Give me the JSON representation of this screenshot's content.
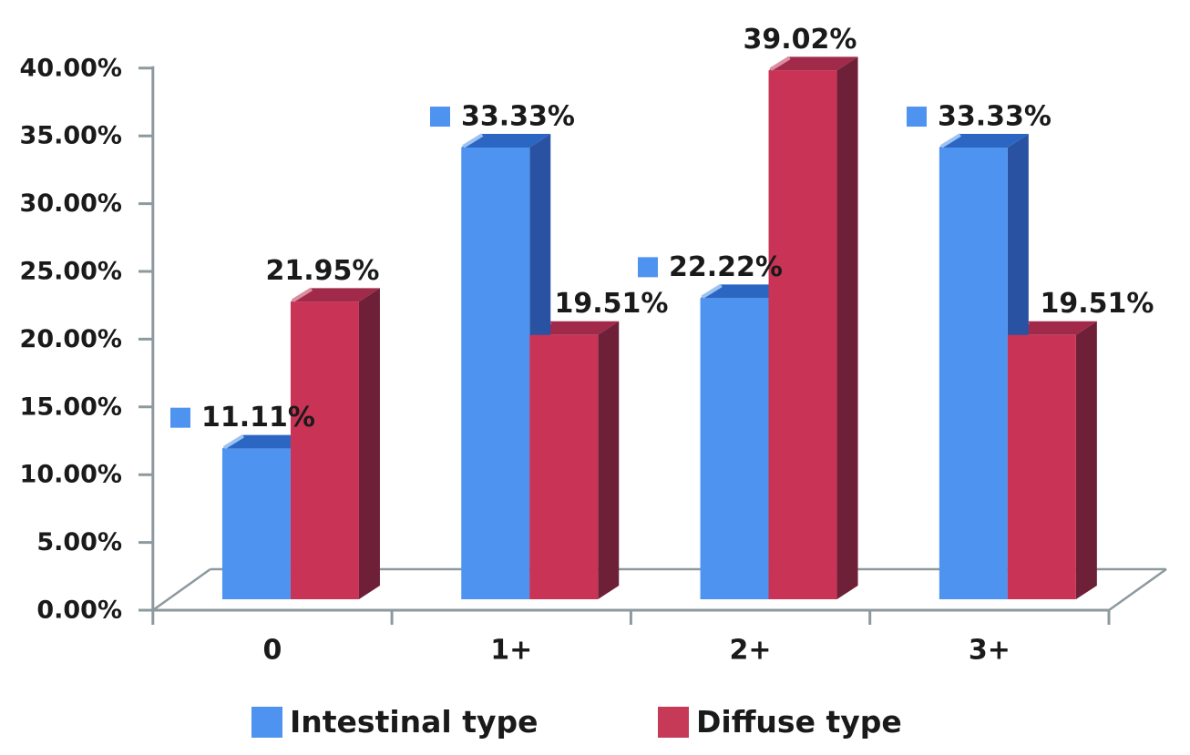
{
  "chart_data": {
    "type": "bar",
    "variant": "3d-clustered-column",
    "title": "",
    "categories": [
      "0",
      "1+",
      "2+",
      "3+"
    ],
    "series": [
      {
        "name": "Intestinal type",
        "values": [
          11.11,
          33.33,
          22.22,
          33.33
        ],
        "data_labels": [
          "11.11%",
          "33.33%",
          "22.22%",
          "33.33%"
        ],
        "show_legend_key_in_labels": true,
        "color_front": "#4e93f0",
        "color_top": "#2b66c2",
        "color_side": "#2a52a3",
        "color_highlight": "#9cc2f1"
      },
      {
        "name": "Diffuse type",
        "values": [
          21.95,
          19.51,
          39.02,
          19.51
        ],
        "data_labels": [
          "21.95%",
          "19.51%",
          "39.02%",
          "19.51%"
        ],
        "show_legend_key_in_labels": false,
        "color_front": "#c93355",
        "color_top": "#a12a4b",
        "color_side": "#6e2038",
        "color_highlight": "#dd8da0"
      }
    ],
    "y_axis": {
      "min": 0,
      "max": 40,
      "step": 5,
      "tick_labels": [
        "40.00%",
        "35.00%",
        "30.00%",
        "25.00%",
        "20.00%",
        "15.00%",
        "10.00%",
        "5.00%",
        "0.00%"
      ]
    },
    "x_axis": {
      "tick_labels": [
        "0",
        "1+",
        "2+",
        "3+"
      ]
    },
    "legend": {
      "position": "bottom",
      "entries": [
        {
          "label": "Intestinal type",
          "color": "#4e93f0"
        },
        {
          "label": "Diffuse type",
          "color": "#c63a57"
        }
      ]
    },
    "gridlines": false,
    "plot_background": "#ffffff",
    "axis_color": "#8d999e",
    "text_color": "#1a1a1a"
  }
}
